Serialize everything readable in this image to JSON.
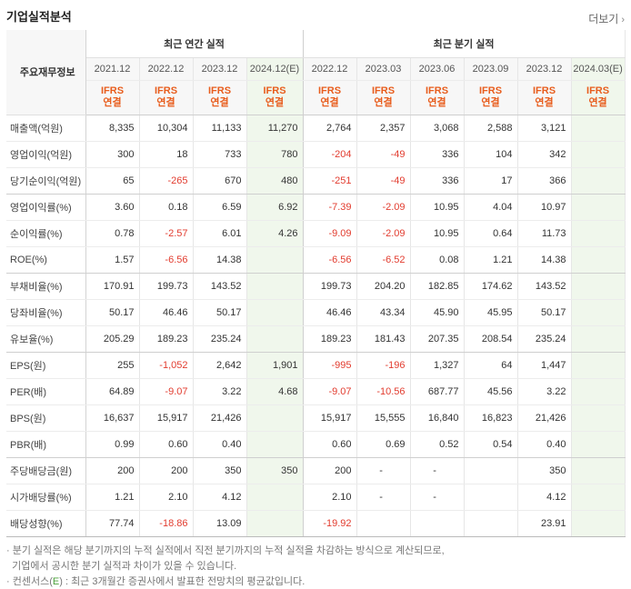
{
  "header": {
    "title": "기업실적분석",
    "more_label": "더보기",
    "more_icon": "chevron-right-icon"
  },
  "table": {
    "row_header_label": "주요재무정보",
    "group_annual": "최근 연간 실적",
    "group_quarter": "최근 분기 실적",
    "annual_periods": [
      "2021.12",
      "2022.12",
      "2023.12",
      "2024.12(E)"
    ],
    "quarter_periods": [
      "2022.12",
      "2023.03",
      "2023.06",
      "2023.09",
      "2023.12",
      "2024.03(E)"
    ],
    "ifrs_top": "IFRS",
    "ifrs_bottom": "연결",
    "rows": [
      {
        "label": "매출액(억원)",
        "annual": [
          "8,335",
          "10,304",
          "11,133",
          "11,270"
        ],
        "quarter": [
          "2,764",
          "2,357",
          "3,068",
          "2,588",
          "3,121",
          ""
        ]
      },
      {
        "label": "영업이익(억원)",
        "annual": [
          "300",
          "18",
          "733",
          "780"
        ],
        "quarter": [
          "-204",
          "-49",
          "336",
          "104",
          "342",
          ""
        ]
      },
      {
        "label": "당기순이익(억원)",
        "annual": [
          "65",
          "-265",
          "670",
          "480"
        ],
        "quarter": [
          "-251",
          "-49",
          "336",
          "17",
          "366",
          ""
        ]
      },
      {
        "label": "영업이익률(%)",
        "annual": [
          "3.60",
          "0.18",
          "6.59",
          "6.92"
        ],
        "quarter": [
          "-7.39",
          "-2.09",
          "10.95",
          "4.04",
          "10.97",
          ""
        ]
      },
      {
        "label": "순이익률(%)",
        "annual": [
          "0.78",
          "-2.57",
          "6.01",
          "4.26"
        ],
        "quarter": [
          "-9.09",
          "-2.09",
          "10.95",
          "0.64",
          "11.73",
          ""
        ]
      },
      {
        "label": "ROE(%)",
        "annual": [
          "1.57",
          "-6.56",
          "14.38",
          ""
        ],
        "quarter": [
          "-6.56",
          "-6.52",
          "0.08",
          "1.21",
          "14.38",
          ""
        ]
      },
      {
        "label": "부채비율(%)",
        "annual": [
          "170.91",
          "199.73",
          "143.52",
          ""
        ],
        "quarter": [
          "199.73",
          "204.20",
          "182.85",
          "174.62",
          "143.52",
          ""
        ]
      },
      {
        "label": "당좌비율(%)",
        "annual": [
          "50.17",
          "46.46",
          "50.17",
          ""
        ],
        "quarter": [
          "46.46",
          "43.34",
          "45.90",
          "45.95",
          "50.17",
          ""
        ]
      },
      {
        "label": "유보율(%)",
        "annual": [
          "205.29",
          "189.23",
          "235.24",
          ""
        ],
        "quarter": [
          "189.23",
          "181.43",
          "207.35",
          "208.54",
          "235.24",
          ""
        ]
      },
      {
        "label": "EPS(원)",
        "annual": [
          "255",
          "-1,052",
          "2,642",
          "1,901"
        ],
        "quarter": [
          "-995",
          "-196",
          "1,327",
          "64",
          "1,447",
          ""
        ]
      },
      {
        "label": "PER(배)",
        "annual": [
          "64.89",
          "-9.07",
          "3.22",
          "4.68"
        ],
        "quarter": [
          "-9.07",
          "-10.56",
          "687.77",
          "45.56",
          "3.22",
          ""
        ]
      },
      {
        "label": "BPS(원)",
        "annual": [
          "16,637",
          "15,917",
          "21,426",
          ""
        ],
        "quarter": [
          "15,917",
          "15,555",
          "16,840",
          "16,823",
          "21,426",
          ""
        ]
      },
      {
        "label": "PBR(배)",
        "annual": [
          "0.99",
          "0.60",
          "0.40",
          ""
        ],
        "quarter": [
          "0.60",
          "0.69",
          "0.52",
          "0.54",
          "0.40",
          ""
        ]
      },
      {
        "label": "주당배당금(원)",
        "annual": [
          "200",
          "200",
          "350",
          "350"
        ],
        "quarter": [
          "200",
          "-",
          "-",
          "",
          "350",
          ""
        ]
      },
      {
        "label": "시가배당률(%)",
        "annual": [
          "1.21",
          "2.10",
          "4.12",
          ""
        ],
        "quarter": [
          "2.10",
          "-",
          "-",
          "",
          "4.12",
          ""
        ]
      },
      {
        "label": "배당성향(%)",
        "annual": [
          "77.74",
          "-18.86",
          "13.09",
          ""
        ],
        "quarter": [
          "-19.92",
          "",
          "",
          "",
          "23.91",
          ""
        ]
      }
    ]
  },
  "notes": {
    "line1": "분기 실적은 해당 분기까지의 누적 실적에서 직전 분기까지의 누적 실적을 차감하는 방식으로 계산되므로,",
    "line2": "기업에서 공시한 분기 실적과 차이가 있을 수 있습니다.",
    "line3_prefix": "컨센서스(",
    "line3_mark": "E",
    "line3_suffix": ") : 최근 3개월간 증권사에서 발표한 전망치의 평균값입니다."
  },
  "colors": {
    "negative": "#e23c2f",
    "ifrs": "#e85d1d",
    "estimate_bg": "#f0f7ec",
    "accent_green": "#4aa03a"
  }
}
